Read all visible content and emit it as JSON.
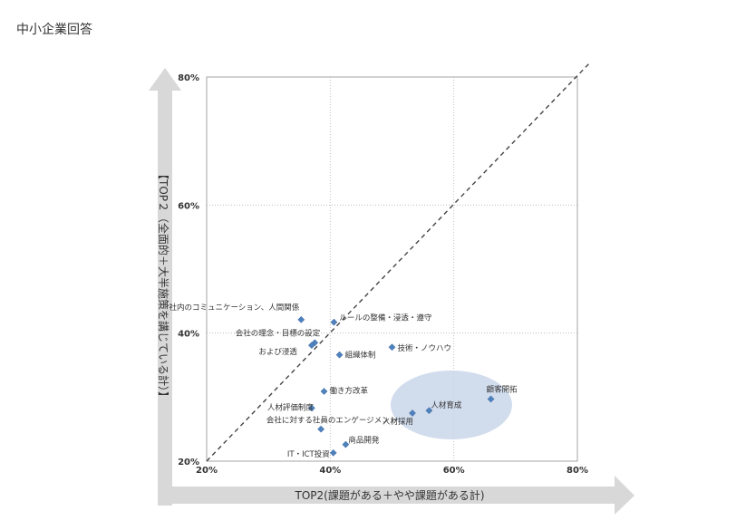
{
  "header": {
    "title": "中小企業回答"
  },
  "chart_data": {
    "type": "scatter",
    "xlabel": "TOP2(課題がある＋やや課題がある計)",
    "ylabel": "【TOP２（全面的＋大半施策を講じている計）】",
    "xlim": [
      0.2,
      0.8
    ],
    "ylim": [
      0.2,
      0.8
    ],
    "x_ticks": [
      "20%",
      "40%",
      "60%",
      "80%"
    ],
    "y_ticks": [
      "20%",
      "40%",
      "60%",
      "80%"
    ],
    "grid": true,
    "diagonal_reference_line": true,
    "highlight_ellipse_color": "#c9d6ea",
    "point_color": "#4f81bd",
    "points": [
      {
        "label": "社内のコミュニケーション、人間関係",
        "x": 0.353,
        "y": 0.421
      },
      {
        "label": "ルールの整備・浸透・遵守",
        "x": 0.406,
        "y": 0.417
      },
      {
        "label": "会社の理念・目標の設定",
        "x": 0.375,
        "y": 0.385
      },
      {
        "label": "および浸透",
        "x": 0.37,
        "y": 0.381
      },
      {
        "label": "組織体制",
        "x": 0.415,
        "y": 0.366
      },
      {
        "label": "技術・ノウハウ",
        "x": 0.5,
        "y": 0.378
      },
      {
        "label": "働き方改革",
        "x": 0.39,
        "y": 0.309
      },
      {
        "label": "人材評価制度",
        "x": 0.37,
        "y": 0.283
      },
      {
        "label": "顧客開拓",
        "x": 0.66,
        "y": 0.297
      },
      {
        "label": "人材育成",
        "x": 0.56,
        "y": 0.279
      },
      {
        "label": "人材採用",
        "x": 0.533,
        "y": 0.275
      },
      {
        "label": "会社に対する社員のエンゲージメント",
        "x": 0.385,
        "y": 0.25
      },
      {
        "label": "商品開発",
        "x": 0.425,
        "y": 0.226
      },
      {
        "label": "IT・ICT投資",
        "x": 0.405,
        "y": 0.213
      }
    ]
  }
}
